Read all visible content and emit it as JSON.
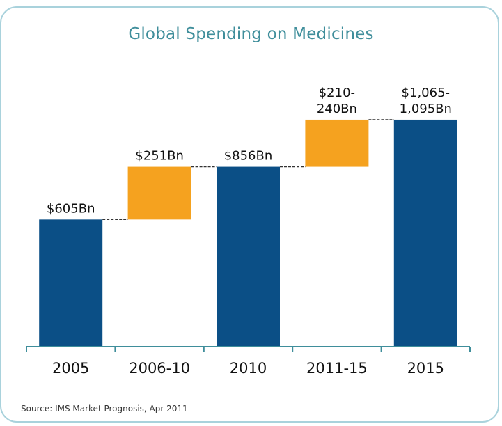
{
  "colors": {
    "frame_border": "#a9d2dc",
    "title": "#3f8e9b",
    "axis": "#3f8e9b",
    "total_bar": "#0b4f86",
    "growth_bar": "#f5a21f",
    "connector": "#333333"
  },
  "source_text": "Source: IMS Market Prognosis, Apr 2011",
  "chart_data": {
    "type": "bar",
    "subtype": "waterfall",
    "title": "Global Spending on Medicines",
    "xlabel": "",
    "ylabel": "",
    "ylim": [
      0,
      1130
    ],
    "grid": false,
    "legend": "none",
    "categories": [
      "2005",
      "2006-10",
      "2010",
      "2011-15",
      "2015"
    ],
    "bars": [
      {
        "category": "2005",
        "kind": "total",
        "low": 0,
        "high": 605,
        "label_lines": [
          "$605Bn"
        ]
      },
      {
        "category": "2006-10",
        "kind": "increase",
        "low": 605,
        "high": 856,
        "label_lines": [
          "$251Bn"
        ]
      },
      {
        "category": "2010",
        "kind": "total",
        "low": 0,
        "high": 856,
        "label_lines": [
          "$856Bn"
        ]
      },
      {
        "category": "2011-15",
        "kind": "increase",
        "low": 856,
        "high": 1080,
        "label_lines": [
          "$210-",
          "240Bn"
        ]
      },
      {
        "category": "2015",
        "kind": "total",
        "low": 0,
        "high": 1080,
        "label_lines": [
          "$1,065-",
          "1,095Bn"
        ]
      }
    ]
  }
}
